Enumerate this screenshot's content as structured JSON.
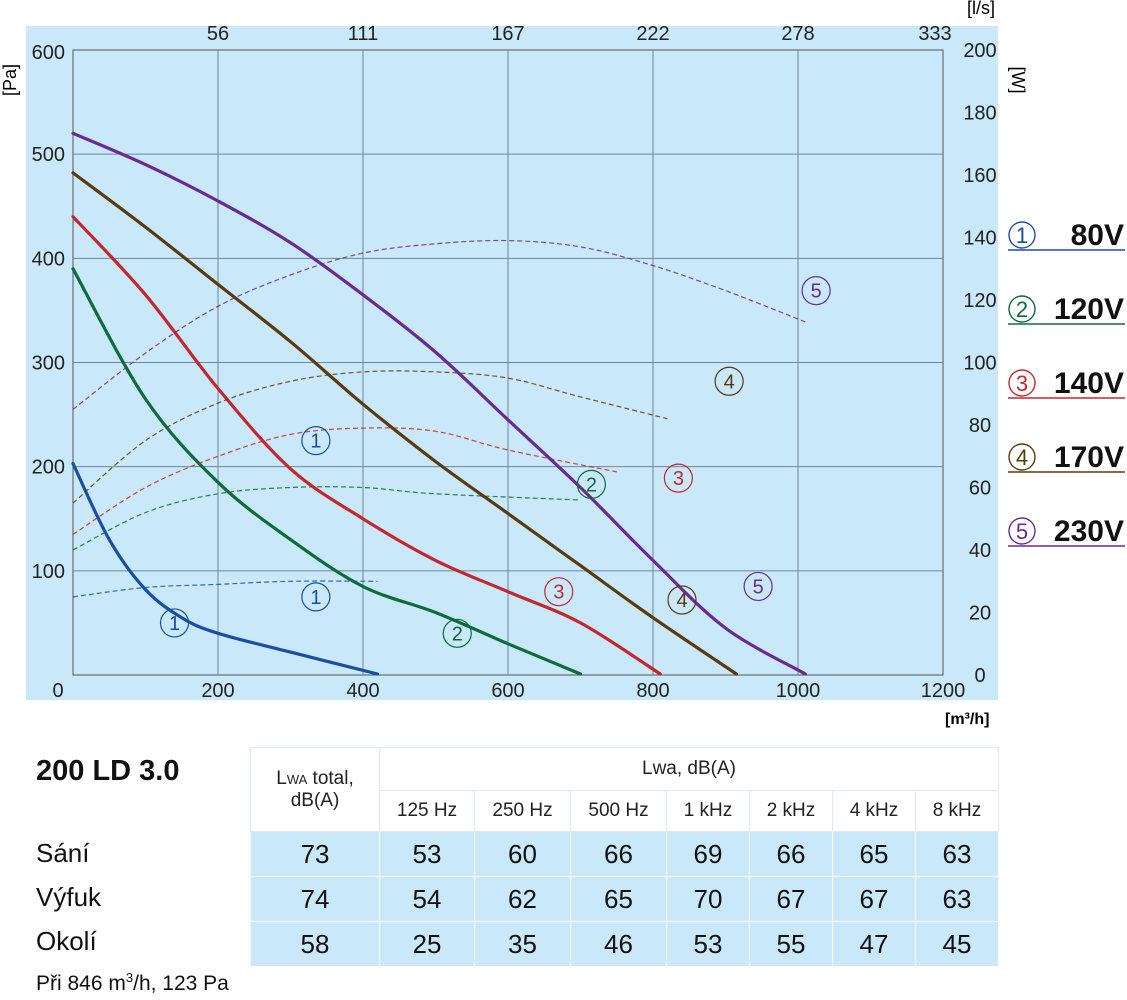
{
  "chart_data": {
    "type": "line",
    "x_unit": "[m³/h]",
    "y_unit_left": "[Pa]",
    "y_unit_right": "[W]",
    "x_unit_top": "[l/s]",
    "xlim": [
      0,
      1200
    ],
    "ylim": [
      0,
      600
    ],
    "y2lim": [
      0,
      200
    ],
    "x_ticks": [
      "0",
      "200",
      "400",
      "600",
      "800",
      "1000",
      "1200"
    ],
    "y_ticks": [
      "100",
      "200",
      "300",
      "400",
      "500",
      "600"
    ],
    "y2_ticks": [
      "0",
      "20",
      "40",
      "60",
      "80",
      "100",
      "120",
      "140",
      "160",
      "180",
      "200"
    ],
    "top_ticks": [
      "56",
      "111",
      "167",
      "222",
      "278",
      "333"
    ],
    "grid": true,
    "colors": [
      "#1a4ea6",
      "#0e6b3a",
      "#c8262e",
      "#5a3a0e",
      "#6a2a92"
    ],
    "series": [
      {
        "name": "80V",
        "id": "1",
        "pressure": [
          [
            0,
            203
          ],
          [
            50,
            130
          ],
          [
            100,
            82
          ],
          [
            150,
            55
          ],
          [
            200,
            40
          ],
          [
            300,
            22
          ],
          [
            420,
            1
          ]
        ],
        "power": [
          [
            0,
            25
          ],
          [
            100,
            28
          ],
          [
            200,
            29
          ],
          [
            300,
            30
          ],
          [
            420,
            30
          ]
        ]
      },
      {
        "name": "120V",
        "id": "2",
        "pressure": [
          [
            0,
            390
          ],
          [
            100,
            265
          ],
          [
            200,
            185
          ],
          [
            300,
            130
          ],
          [
            400,
            85
          ],
          [
            500,
            60
          ],
          [
            600,
            30
          ],
          [
            700,
            1
          ]
        ],
        "power": [
          [
            0,
            40
          ],
          [
            100,
            52
          ],
          [
            200,
            58
          ],
          [
            300,
            60
          ],
          [
            400,
            60
          ],
          [
            500,
            58
          ],
          [
            700,
            56
          ]
        ]
      },
      {
        "name": "140V",
        "id": "3",
        "pressure": [
          [
            0,
            440
          ],
          [
            100,
            365
          ],
          [
            200,
            275
          ],
          [
            300,
            198
          ],
          [
            400,
            150
          ],
          [
            500,
            110
          ],
          [
            600,
            80
          ],
          [
            700,
            50
          ],
          [
            810,
            1
          ]
        ],
        "power": [
          [
            0,
            45
          ],
          [
            100,
            60
          ],
          [
            200,
            70
          ],
          [
            300,
            77
          ],
          [
            400,
            79
          ],
          [
            500,
            78
          ],
          [
            600,
            72
          ],
          [
            750,
            65
          ]
        ]
      },
      {
        "name": "170V",
        "id": "4",
        "pressure": [
          [
            0,
            482
          ],
          [
            100,
            430
          ],
          [
            200,
            375
          ],
          [
            300,
            320
          ],
          [
            400,
            260
          ],
          [
            500,
            205
          ],
          [
            600,
            155
          ],
          [
            700,
            105
          ],
          [
            800,
            55
          ],
          [
            915,
            1
          ]
        ],
        "power": [
          [
            0,
            55
          ],
          [
            100,
            75
          ],
          [
            200,
            87
          ],
          [
            300,
            94
          ],
          [
            400,
            97
          ],
          [
            500,
            97
          ],
          [
            600,
            95
          ],
          [
            700,
            89
          ],
          [
            820,
            82
          ]
        ]
      },
      {
        "name": "230V",
        "id": "5",
        "pressure": [
          [
            0,
            520
          ],
          [
            100,
            490
          ],
          [
            200,
            455
          ],
          [
            300,
            415
          ],
          [
            400,
            365
          ],
          [
            500,
            310
          ],
          [
            600,
            245
          ],
          [
            700,
            180
          ],
          [
            800,
            110
          ],
          [
            900,
            45
          ],
          [
            1010,
            1
          ]
        ],
        "power": [
          [
            0,
            85
          ],
          [
            100,
            103
          ],
          [
            200,
            118
          ],
          [
            300,
            128
          ],
          [
            400,
            135
          ],
          [
            500,
            138
          ],
          [
            600,
            139
          ],
          [
            700,
            137
          ],
          [
            800,
            131
          ],
          [
            900,
            123
          ],
          [
            1010,
            113
          ]
        ]
      }
    ],
    "curve_labels": {
      "pressure": [
        [
          140,
          50
        ],
        [
          335,
          75
        ],
        [
          530,
          40
        ],
        [
          670,
          80
        ],
        [
          840,
          72
        ],
        [
          945,
          85
        ]
      ],
      "power": [
        [
          335,
          75
        ],
        [
          715,
          61
        ],
        [
          835,
          63
        ],
        [
          905,
          94
        ],
        [
          1025,
          123
        ]
      ]
    }
  },
  "legend": [
    {
      "num": "1",
      "label": "80V",
      "color": "#1a4ea6"
    },
    {
      "num": "2",
      "label": "120V",
      "color": "#0e6b3a"
    },
    {
      "num": "3",
      "label": "140V",
      "color": "#c8262e"
    },
    {
      "num": "4",
      "label": "170V",
      "color": "#5a3a0e"
    },
    {
      "num": "5",
      "label": "230V",
      "color": "#6a2a92"
    }
  ],
  "model": "200 LD 3.0",
  "table": {
    "total_header_a": "L",
    "total_header_sub": "WA",
    "total_header_b": " total,",
    "total_header_c": "dB(A)",
    "band_header": "Lwa, dB(A)",
    "freqs": [
      "125 Hz",
      "250 Hz",
      "500 Hz",
      "1 kHz",
      "2 kHz",
      "4 kHz",
      "8 kHz"
    ],
    "rows": [
      {
        "label": "Sání",
        "values": [
          "73",
          "53",
          "60",
          "66",
          "69",
          "66",
          "65",
          "63"
        ]
      },
      {
        "label": "Výfuk",
        "values": [
          "74",
          "54",
          "62",
          "65",
          "70",
          "67",
          "67",
          "63"
        ]
      },
      {
        "label": "Okolí",
        "values": [
          "58",
          "25",
          "35",
          "46",
          "53",
          "55",
          "47",
          "45"
        ]
      }
    ]
  },
  "footnote_a": "Při 846 m",
  "footnote_sup": "3",
  "footnote_b": "/h, 123 Pa"
}
